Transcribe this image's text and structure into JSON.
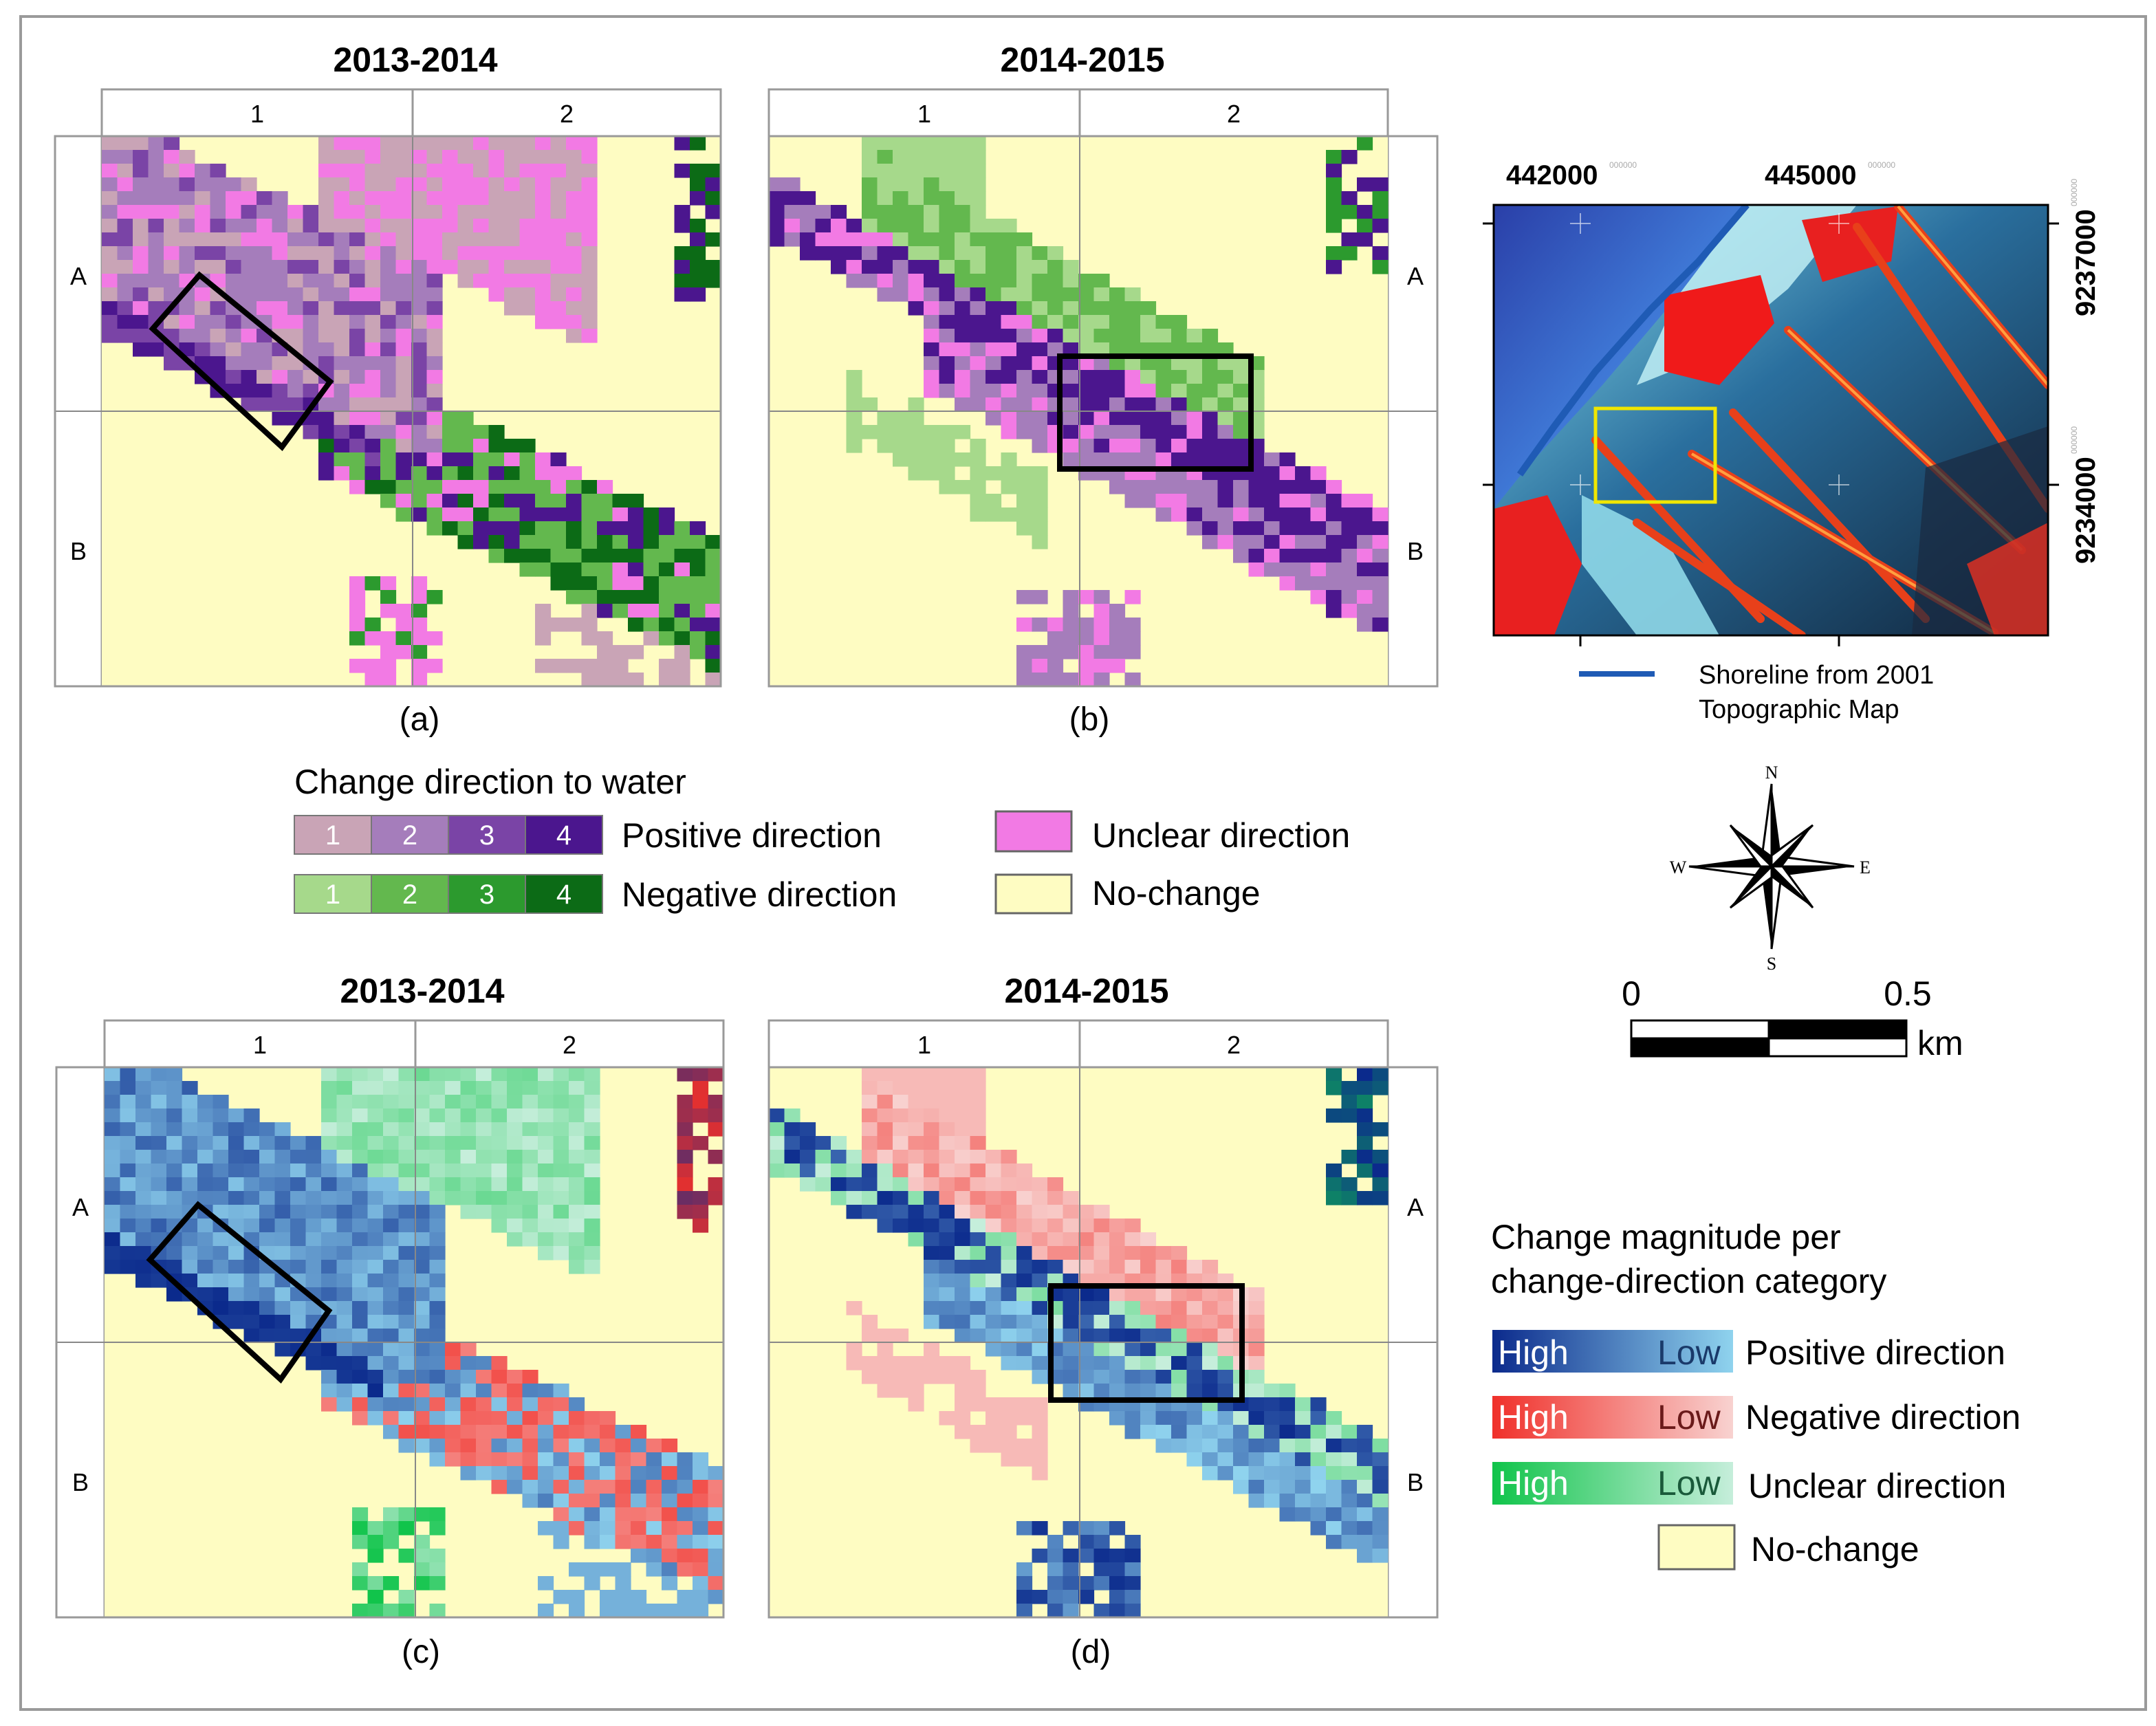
{
  "panels": [
    {
      "id": "a",
      "title": "2013-2014",
      "caption": "(a)",
      "mode": "dir",
      "box": "tilted",
      "cols": [
        "1",
        "2"
      ],
      "rows": [
        "A",
        "B"
      ]
    },
    {
      "id": "b",
      "title": "2014-2015",
      "caption": "(b)",
      "mode": "dir",
      "box": "rect",
      "cols": [
        "1",
        "2"
      ],
      "rows": [
        "A",
        "B"
      ]
    },
    {
      "id": "c",
      "title": "2013-2014",
      "caption": "(c)",
      "mode": "mag",
      "box": "tilted",
      "cols": [
        "1",
        "2"
      ],
      "rows": [
        "A",
        "B"
      ]
    },
    {
      "id": "d",
      "title": "2014-2015",
      "caption": "(d)",
      "mode": "mag",
      "box": "rect",
      "cols": [
        "1",
        "2"
      ],
      "rows": [
        "A",
        "B"
      ]
    }
  ],
  "direction_legend": {
    "title": "Change direction to water",
    "positive_label": "Positive direction",
    "negative_label": "Negative direction",
    "unclear_label": "Unclear direction",
    "nochange_label": "No-change",
    "classes": [
      "1",
      "2",
      "3",
      "4"
    ],
    "positive_colors": [
      "#c9a4b6",
      "#a57dbb",
      "#7a44a6",
      "#4b168e"
    ],
    "negative_colors": [
      "#a6d98b",
      "#63b84e",
      "#2c9a2e",
      "#0c6b16"
    ],
    "unclear_color": "#f27ae4",
    "nochange_color": "#fefcc2"
  },
  "magnitude_legend": {
    "title_line1": "Change magnitude per",
    "title_line2": "change-direction category",
    "high": "High",
    "low": "Low",
    "rows": [
      {
        "label": "Positive direction",
        "from": "#0b2a8c",
        "to": "#8fd3ee"
      },
      {
        "label": "Negative direction",
        "from": "#f0302a",
        "to": "#f8d2d0"
      },
      {
        "label": "Unclear direction",
        "from": "#10c44a",
        "to": "#c6eedb"
      }
    ],
    "nochange_label": "No-change",
    "nochange_color": "#fefcc2"
  },
  "locator_map": {
    "x_ticks": [
      "442000",
      "445000"
    ],
    "y_ticks": [
      "9237000",
      "9234000"
    ],
    "tick_suffix": "000000",
    "shoreline_label_line1": "Shoreline from 2001",
    "shoreline_label_line2": "Topographic Map",
    "shoreline_color": "#1f5bb5",
    "highlight_color": "#f0e600"
  },
  "compass": {
    "n": "N",
    "s": "S",
    "e": "E",
    "w": "W"
  },
  "scale_bar": {
    "start": "0",
    "end": "0.5",
    "unit": "km"
  }
}
